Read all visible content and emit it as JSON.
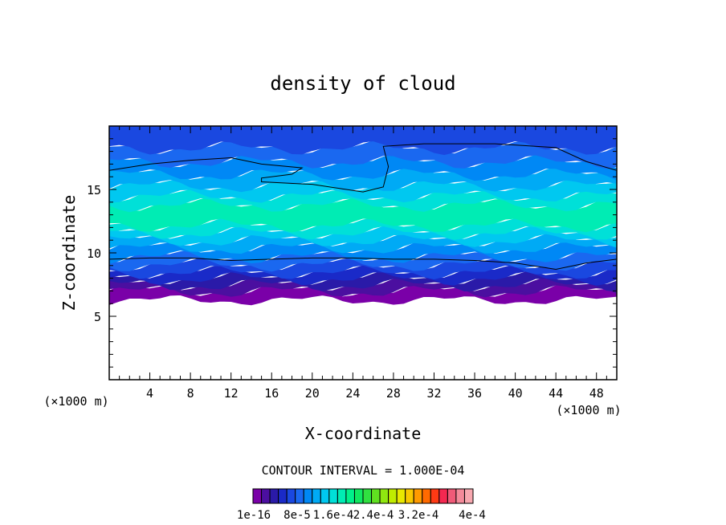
{
  "chart_data": {
    "type": "heatmap",
    "title": "density of cloud",
    "xlabel": "X-coordinate",
    "ylabel": "Z-coordinate",
    "x_unit_left": "(×1000 m)",
    "x_unit_right": "(×1000 m)",
    "xlim": [
      0,
      50
    ],
    "ylim": [
      0,
      20
    ],
    "xticks": [
      "4",
      "8",
      "12",
      "16",
      "20",
      "24",
      "28",
      "32",
      "36",
      "40",
      "44",
      "48"
    ],
    "yticks": [
      "5",
      "10",
      "15"
    ],
    "contour_interval_text": "CONTOUR INTERVAL = 1.000E-04",
    "colorbar": {
      "colors": [
        "#7a00a8",
        "#4b0fa0",
        "#2a1aa8",
        "#1a2ac8",
        "#1a48e0",
        "#1a68f0",
        "#0088f5",
        "#00aaf5",
        "#00c8f0",
        "#00e0d8",
        "#00ecb4",
        "#00f08a",
        "#10e860",
        "#30e040",
        "#60e020",
        "#90e810",
        "#c0ec00",
        "#e8e800",
        "#f8c800",
        "#ff9a00",
        "#ff6a00",
        "#ff3a14",
        "#f42850",
        "#f05a78",
        "#f48a9a",
        "#f8a8b0"
      ],
      "labels": [
        "1e-16",
        "8e-5",
        "1.6e-4",
        "2.4e-4",
        "3.2e-4",
        "4e-4"
      ]
    },
    "bands": [
      {
        "z_bottom": 6.3,
        "z_top": 7.0,
        "color": "#7a00a8"
      },
      {
        "z_bottom": 7.0,
        "z_top": 7.5,
        "color": "#4b0fa0"
      },
      {
        "z_bottom": 7.5,
        "z_top": 8.0,
        "color": "#2a1aa8"
      },
      {
        "z_bottom": 8.0,
        "z_top": 8.5,
        "color": "#1a2ac8"
      },
      {
        "z_bottom": 8.5,
        "z_top": 9.1,
        "color": "#1a48e0"
      },
      {
        "z_bottom": 9.1,
        "z_top": 9.7,
        "color": "#1a68f0"
      },
      {
        "z_bottom": 9.7,
        "z_top": 10.4,
        "color": "#0088f5"
      },
      {
        "z_bottom": 10.4,
        "z_top": 11.0,
        "color": "#00aaf5"
      },
      {
        "z_bottom": 11.0,
        "z_top": 11.6,
        "color": "#00c8f0"
      },
      {
        "z_bottom": 11.6,
        "z_top": 12.2,
        "color": "#00e0d8"
      },
      {
        "z_bottom": 12.2,
        "z_top": 13.8,
        "color": "#00ecb4"
      },
      {
        "z_bottom": 13.8,
        "z_top": 14.5,
        "color": "#00e0d8"
      },
      {
        "z_bottom": 14.5,
        "z_top": 15.3,
        "color": "#00c8f0"
      },
      {
        "z_bottom": 15.3,
        "z_top": 16.2,
        "color": "#00aaf5"
      },
      {
        "z_bottom": 16.2,
        "z_top": 17.2,
        "color": "#0088f5"
      },
      {
        "z_bottom": 17.2,
        "z_top": 18.3,
        "color": "#1a68f0"
      },
      {
        "z_bottom": 18.3,
        "z_top": 20.0,
        "color": "#1a48e0"
      }
    ],
    "contours": [
      {
        "name": "upper",
        "points": [
          [
            0,
            16.5
          ],
          [
            4,
            17.0
          ],
          [
            8,
            17.3
          ],
          [
            12,
            17.5
          ],
          [
            15,
            17.0
          ],
          [
            19,
            16.7
          ],
          [
            18,
            16.2
          ],
          [
            15,
            15.9
          ],
          [
            15,
            15.6
          ],
          [
            20,
            15.4
          ],
          [
            25,
            14.8
          ],
          [
            27,
            15.2
          ],
          [
            27.5,
            16.8
          ],
          [
            27,
            18.4
          ],
          [
            31,
            18.6
          ],
          [
            38,
            18.6
          ],
          [
            44,
            18.3
          ],
          [
            47,
            17.2
          ],
          [
            50,
            16.5
          ]
        ]
      },
      {
        "name": "lower",
        "points": [
          [
            0,
            9.5
          ],
          [
            4,
            9.6
          ],
          [
            8,
            9.6
          ],
          [
            12,
            9.4
          ],
          [
            16,
            9.5
          ],
          [
            20,
            9.6
          ],
          [
            24,
            9.6
          ],
          [
            28,
            9.5
          ],
          [
            32,
            9.5
          ],
          [
            36,
            9.4
          ],
          [
            40,
            9.2
          ],
          [
            44,
            8.7
          ],
          [
            47,
            9.2
          ],
          [
            50,
            9.5
          ]
        ]
      }
    ]
  }
}
